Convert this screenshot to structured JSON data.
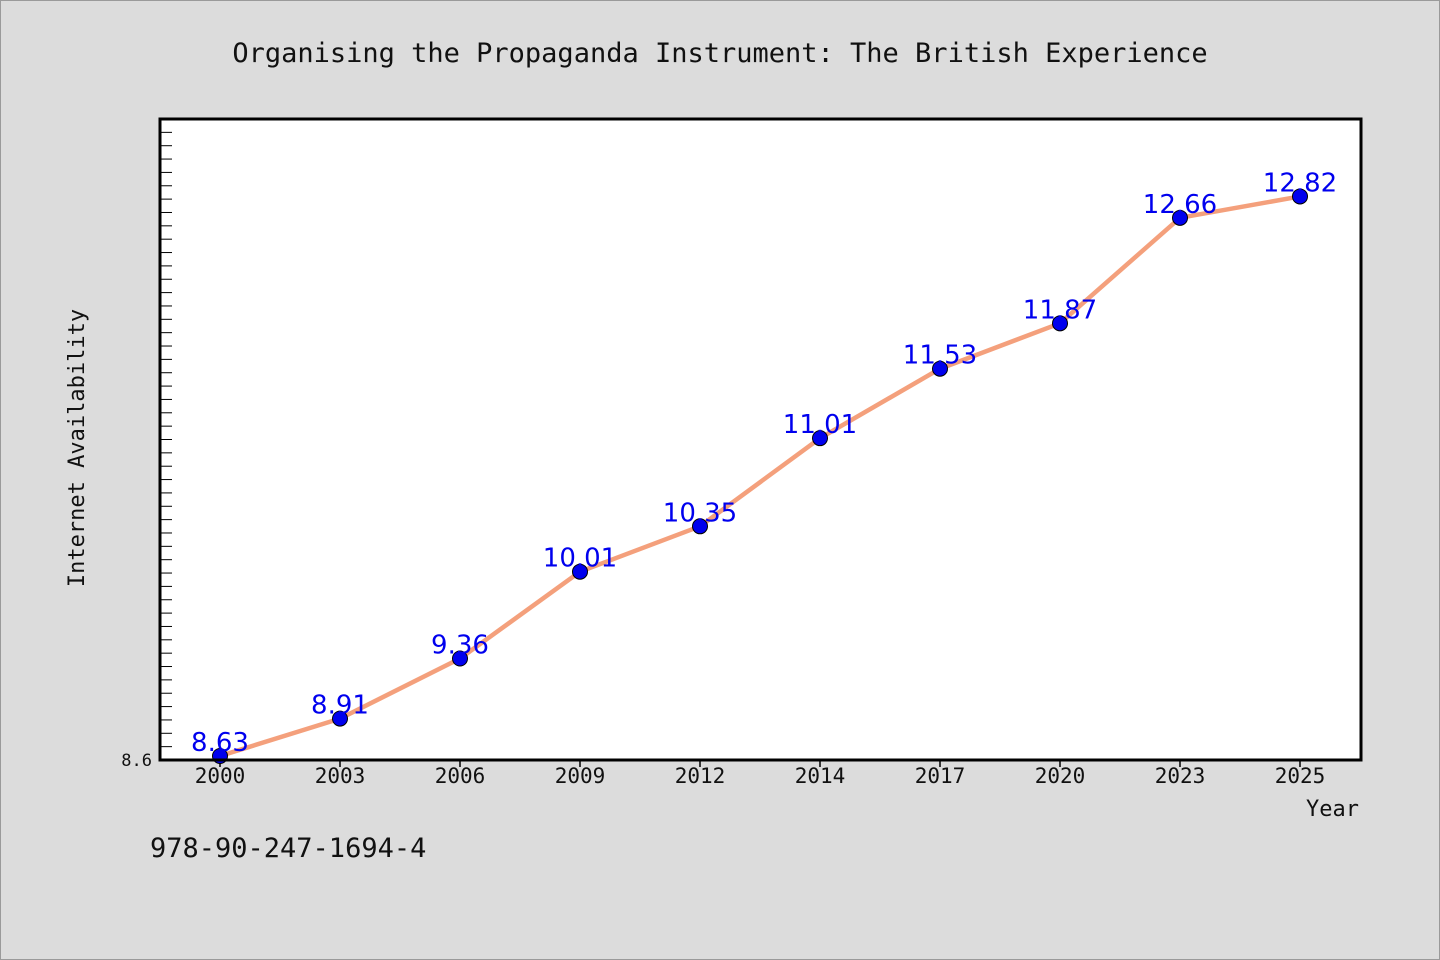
{
  "chart_data": {
    "type": "line",
    "title": "Organising the Propaganda Instrument: The British Experience",
    "xlabel": "Year",
    "ylabel": "Internet Availability",
    "categories": [
      "2000",
      "2003",
      "2006",
      "2009",
      "2012",
      "2014",
      "2017",
      "2020",
      "2023",
      "2025"
    ],
    "series": [
      {
        "values": [
          8.63,
          8.91,
          9.36,
          10.01,
          10.35,
          11.01,
          11.53,
          11.87,
          12.66,
          12.82
        ]
      }
    ],
    "data_labels": [
      "8.63",
      "8.91",
      "9.36",
      "10.01",
      "10.35",
      "11.01",
      "11.53",
      "11.87",
      "12.66",
      "12.82"
    ],
    "y_tick_labels": [
      "8.6"
    ],
    "ylim": [
      8.6,
      13.4
    ],
    "grid": false,
    "colors": {
      "line": "#f4a07c",
      "marker": "#0000ee",
      "label": "#0000ee",
      "background": "#dcdcdc",
      "plot_background": "#ffffff"
    }
  },
  "caption": "978-90-247-1694-4"
}
